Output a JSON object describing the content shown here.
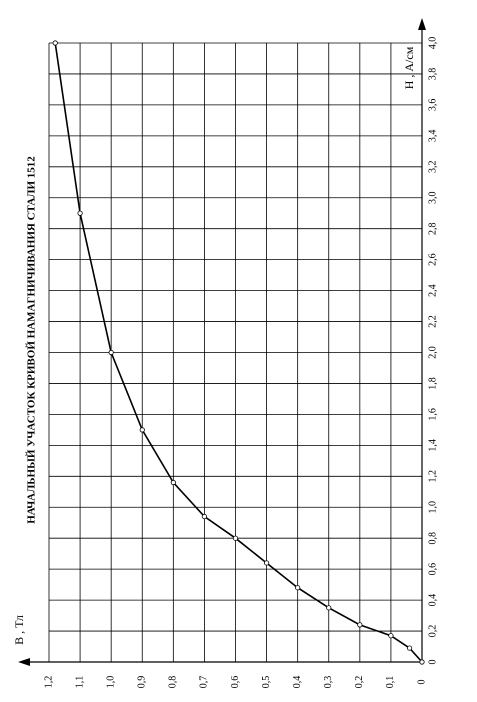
{
  "chart_data": {
    "type": "line",
    "title": "НАЧАЛЬНЫЙ УЧАСТОК КРИВОЙ НАМАГНИЧИВАНИЯ СТАЛИ 1512",
    "x_label": "H , А/см",
    "y_label": "B , Тл",
    "x": [
      0,
      0.09,
      0.17,
      0.24,
      0.35,
      0.48,
      0.64,
      0.8,
      0.94,
      1.16,
      1.5,
      2.0,
      2.9,
      4.0
    ],
    "series": [
      {
        "color": "#000000",
        "values": [
          0,
          0.04,
          0.1,
          0.2,
          0.3,
          0.4,
          0.5,
          0.6,
          0.7,
          0.8,
          0.9,
          1.0,
          1.1,
          1.18
        ]
      }
    ],
    "xlim": [
      0,
      4
    ],
    "ylim": [
      0,
      1.2
    ],
    "xticks": [
      0,
      {
        "value": 0.2,
        "label": "0,2"
      },
      {
        "value": 0.4,
        "label": "0,4"
      },
      {
        "value": 0.6,
        "label": "0,6"
      },
      {
        "value": 0.8,
        "label": "0,8"
      },
      {
        "value": 1.0,
        "label": "1,0"
      },
      {
        "value": 1.2,
        "label": "1,2"
      },
      {
        "value": 1.4,
        "label": "1,4"
      },
      {
        "value": 1.6,
        "label": "1,6"
      },
      {
        "value": 1.8,
        "label": "1,8"
      },
      {
        "value": 2.0,
        "label": "2,0"
      },
      {
        "value": 2.2,
        "label": "2,2"
      },
      {
        "value": 2.4,
        "label": "2,4"
      },
      {
        "value": 2.6,
        "label": "2,6"
      },
      {
        "value": 2.8,
        "label": "2,8"
      },
      {
        "value": 3.0,
        "label": "3,0"
      },
      {
        "value": 3.2,
        "label": "3,2"
      },
      {
        "value": 3.4,
        "label": "3,4"
      },
      {
        "value": 3.6,
        "label": "3,6"
      },
      {
        "value": 3.8,
        "label": "3,8"
      },
      {
        "value": 4.0,
        "label": "4,0"
      }
    ],
    "yticks": [
      0,
      {
        "value": 0.1,
        "label": "0,1"
      },
      {
        "value": 0.2,
        "label": "0,2"
      },
      {
        "value": 0.3,
        "label": "0,3"
      },
      {
        "value": 0.4,
        "label": "0,4"
      },
      {
        "value": 0.5,
        "label": "0,5"
      },
      {
        "value": 0.6,
        "label": "0,6"
      },
      {
        "value": 0.7,
        "label": "0,7"
      },
      {
        "value": 0.8,
        "label": "0,8"
      },
      {
        "value": 0.9,
        "label": "0,9"
      },
      {
        "value": 1.0,
        "label": "1,0"
      },
      {
        "value": 1.1,
        "label": "1,1"
      },
      {
        "value": 1.2,
        "label": "1,2"
      }
    ],
    "grid": true
  }
}
